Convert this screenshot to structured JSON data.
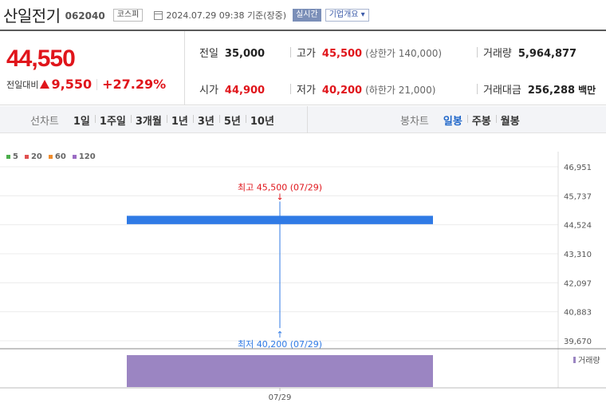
{
  "header": {
    "stock_name": "산일전기",
    "stock_code": "062040",
    "market": "코스피",
    "timestamp": "2024.07.29 09:38 기준(장중)",
    "live_badge": "실시간",
    "company_info": "기업개요 ▾"
  },
  "quote": {
    "price": "44,550",
    "change_label": "전일대비",
    "change_amount": "9,550",
    "change_percent": "+27.29%",
    "prev_close_label": "전일",
    "prev_close": "35,000",
    "high_label": "고가",
    "high": "45,500",
    "upper_limit": "(상한가 140,000)",
    "volume_label": "거래량",
    "volume": "5,964,877",
    "open_label": "시가",
    "open": "44,900",
    "low_label": "저가",
    "low": "40,200",
    "lower_limit": "(하한가 21,000)",
    "turnover_label": "거래대금",
    "turnover": "256,288",
    "turnover_unit": "백만"
  },
  "toolbar": {
    "line_chart_label": "선차트",
    "line_periods": [
      "1일",
      "1주일",
      "3개월",
      "1년",
      "3년",
      "5년",
      "10년"
    ],
    "candle_chart_label": "봉차트",
    "candle_periods": [
      "일봉",
      "주봉",
      "월봉"
    ],
    "selected_candle": "일봉"
  },
  "colors": {
    "up": "#e0151b",
    "candle_body": "#2f7ae5",
    "volume_bar": "#9b85c2",
    "accent_blue": "#1f66c9"
  },
  "chart_data": {
    "type": "candlestick",
    "moving_averages": [
      {
        "name": "5",
        "color": "#4cae4c"
      },
      {
        "name": "20",
        "color": "#e05050"
      },
      {
        "name": "60",
        "color": "#f08c2c"
      },
      {
        "name": "120",
        "color": "#9b6cc4"
      }
    ],
    "y_ticks": [
      "46,951",
      "45,737",
      "44,524",
      "43,310",
      "42,097",
      "40,883",
      "39,670"
    ],
    "ylim": [
      39670,
      46951
    ],
    "x_ticks": [
      "07/29"
    ],
    "candles": [
      {
        "date": "07/29",
        "open": 44900,
        "high": 45500,
        "low": 40200,
        "close": 44550
      }
    ],
    "high_annotation": "최고 45,500 (07/29)",
    "low_annotation": "최저 40,200 (07/29)",
    "volume_label": "거래량",
    "volume": [
      5964877
    ]
  }
}
